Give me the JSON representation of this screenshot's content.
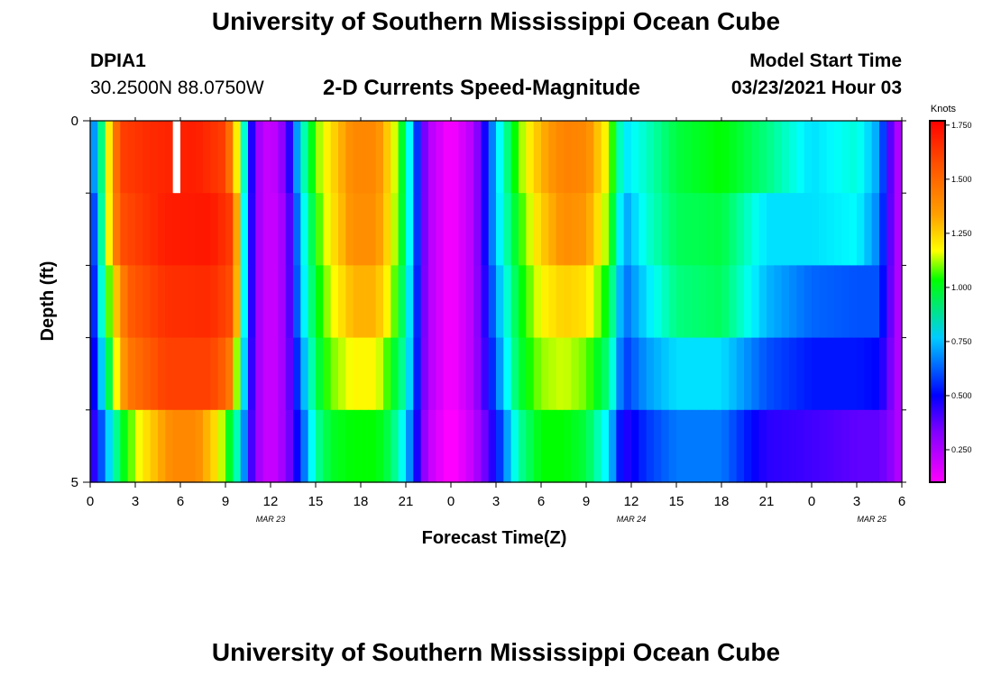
{
  "header": {
    "title": "University of Southern Mississippi Ocean Cube",
    "station_id": "DPIA1",
    "station_coords": "30.2500N 88.0750W",
    "product_title": "2-D Currents Speed-Magnitude",
    "model_start_label": "Model Start Time",
    "model_start_value": "03/23/2021 Hour 03"
  },
  "footer": {
    "title": "University of Southern Mississippi Ocean Cube"
  },
  "chart_data": {
    "type": "heatmap",
    "title": "2-D Currents Speed-Magnitude",
    "xlabel": "Forecast Time(Z)",
    "ylabel": "Depth (ft)",
    "ylim": [
      0,
      5
    ],
    "y_tick_labels": [
      "0",
      "5"
    ],
    "x_hours": [
      0,
      54
    ],
    "x_tick_labels": [
      "0",
      "3",
      "6",
      "9",
      "12",
      "15",
      "18",
      "21",
      "0",
      "3",
      "6",
      "9",
      "12",
      "15",
      "18",
      "21",
      "0",
      "3",
      "6"
    ],
    "date_labels": [
      {
        "label": "MAR 23",
        "hour": 12
      },
      {
        "label": "MAR 24",
        "hour": 36
      },
      {
        "label": "MAR 25",
        "hour": 52
      }
    ],
    "colorbar": {
      "unit": "Knots",
      "range": [
        0.1,
        1.77
      ],
      "ticks": [
        "0.250",
        "0.500",
        "0.750",
        "1.000",
        "1.250",
        "1.500",
        "1.750"
      ],
      "tick_values": [
        0.25,
        0.5,
        0.75,
        1.0,
        1.25,
        1.5,
        1.75
      ],
      "colors": [
        "#ff00ff",
        "#8000ff",
        "#0000ff",
        "#00ffff",
        "#00ff00",
        "#ffff00",
        "#ff8000",
        "#ff0000"
      ]
    },
    "depth_layers": 5,
    "time_step_hours": 0.5,
    "speed_profiles_by_layer": [
      [
        [
          0,
          0.55
        ],
        [
          1,
          0.95
        ],
        [
          2,
          1.55
        ],
        [
          4,
          1.62
        ],
        [
          7,
          1.66
        ],
        [
          9,
          1.55
        ],
        [
          10,
          0.95
        ],
        [
          11,
          0.3
        ],
        [
          12,
          0.18
        ],
        [
          13,
          0.35
        ],
        [
          14,
          0.75
        ],
        [
          15,
          1.0
        ],
        [
          16,
          1.12
        ],
        [
          17.5,
          1.3
        ],
        [
          19,
          1.3
        ],
        [
          20,
          1.12
        ],
        [
          21,
          0.85
        ],
        [
          22.5,
          0.25
        ],
        [
          24,
          0.1
        ],
        [
          25.5,
          0.25
        ],
        [
          27,
          0.7
        ],
        [
          28.5,
          1.0
        ],
        [
          30,
          1.2
        ],
        [
          31.5,
          1.32
        ],
        [
          33,
          1.3
        ],
        [
          34.5,
          1.05
        ],
        [
          35.5,
          0.72
        ],
        [
          37.5,
          0.82
        ],
        [
          39,
          0.9
        ],
        [
          42,
          0.95
        ],
        [
          45,
          0.85
        ],
        [
          48,
          0.72
        ],
        [
          51,
          0.78
        ],
        [
          52.5,
          0.65
        ],
        [
          53.5,
          0.3
        ],
        [
          54,
          0.2
        ]
      ],
      [
        [
          0,
          0.45
        ],
        [
          1,
          0.95
        ],
        [
          2,
          1.5
        ],
        [
          5,
          1.66
        ],
        [
          8,
          1.68
        ],
        [
          9.5,
          1.55
        ],
        [
          10,
          0.9
        ],
        [
          11,
          0.3
        ],
        [
          12,
          0.18
        ],
        [
          13,
          0.3
        ],
        [
          14,
          0.7
        ],
        [
          15,
          0.95
        ],
        [
          16,
          1.1
        ],
        [
          17.5,
          1.28
        ],
        [
          19,
          1.28
        ],
        [
          20,
          1.1
        ],
        [
          21,
          0.85
        ],
        [
          22.5,
          0.25
        ],
        [
          24,
          0.1
        ],
        [
          25.5,
          0.25
        ],
        [
          27,
          0.7
        ],
        [
          28.5,
          0.95
        ],
        [
          30,
          1.15
        ],
        [
          31.5,
          1.28
        ],
        [
          33,
          1.25
        ],
        [
          34.5,
          1.0
        ],
        [
          35.5,
          0.65
        ],
        [
          37,
          0.78
        ],
        [
          39,
          0.88
        ],
        [
          42,
          0.9
        ],
        [
          45,
          0.72
        ],
        [
          48,
          0.72
        ],
        [
          51,
          0.75
        ],
        [
          52.5,
          0.62
        ],
        [
          53.5,
          0.3
        ],
        [
          54,
          0.2
        ]
      ],
      [
        [
          0,
          0.42
        ],
        [
          1,
          0.9
        ],
        [
          2.5,
          1.45
        ],
        [
          5,
          1.6
        ],
        [
          8,
          1.62
        ],
        [
          9.5,
          1.5
        ],
        [
          10,
          0.9
        ],
        [
          11,
          0.3
        ],
        [
          12,
          0.18
        ],
        [
          13,
          0.3
        ],
        [
          14,
          0.68
        ],
        [
          15,
          0.92
        ],
        [
          16,
          1.05
        ],
        [
          17.5,
          1.2
        ],
        [
          19,
          1.2
        ],
        [
          20,
          1.05
        ],
        [
          21,
          0.82
        ],
        [
          22.5,
          0.25
        ],
        [
          24,
          0.1
        ],
        [
          25.5,
          0.25
        ],
        [
          27,
          0.65
        ],
        [
          28.5,
          0.92
        ],
        [
          30,
          1.08
        ],
        [
          31.5,
          1.15
        ],
        [
          33,
          1.12
        ],
        [
          34.5,
          0.92
        ],
        [
          35.5,
          0.6
        ],
        [
          37,
          0.72
        ],
        [
          39,
          0.85
        ],
        [
          42,
          0.88
        ],
        [
          45,
          0.68
        ],
        [
          48,
          0.6
        ],
        [
          51,
          0.58
        ],
        [
          52.5,
          0.58
        ],
        [
          53.5,
          0.3
        ],
        [
          54,
          0.2
        ]
      ],
      [
        [
          0,
          0.4
        ],
        [
          1,
          0.8
        ],
        [
          2.5,
          1.35
        ],
        [
          5,
          1.55
        ],
        [
          8,
          1.55
        ],
        [
          9.2,
          1.4
        ],
        [
          10,
          0.85
        ],
        [
          11,
          0.3
        ],
        [
          12,
          0.18
        ],
        [
          13,
          0.3
        ],
        [
          14,
          0.62
        ],
        [
          15,
          0.88
        ],
        [
          16,
          1.0
        ],
        [
          17.5,
          1.08
        ],
        [
          19,
          1.08
        ],
        [
          20,
          0.95
        ],
        [
          21,
          0.8
        ],
        [
          22.5,
          0.25
        ],
        [
          24,
          0.1
        ],
        [
          25.5,
          0.25
        ],
        [
          27,
          0.6
        ],
        [
          28.5,
          0.9
        ],
        [
          30,
          1.02
        ],
        [
          31.5,
          1.05
        ],
        [
          33,
          1.0
        ],
        [
          34.5,
          0.85
        ],
        [
          35.5,
          0.55
        ],
        [
          37,
          0.65
        ],
        [
          39,
          0.72
        ],
        [
          42,
          0.72
        ],
        [
          45,
          0.58
        ],
        [
          48,
          0.52
        ],
        [
          51,
          0.52
        ],
        [
          52.5,
          0.5
        ],
        [
          53.5,
          0.3
        ],
        [
          54,
          0.2
        ]
      ],
      [
        [
          0,
          0.38
        ],
        [
          1,
          0.65
        ],
        [
          2,
          0.9
        ],
        [
          3.5,
          1.1
        ],
        [
          5.5,
          1.3
        ],
        [
          7,
          1.3
        ],
        [
          8.5,
          1.1
        ],
        [
          10,
          0.75
        ],
        [
          11,
          0.3
        ],
        [
          12,
          0.18
        ],
        [
          13,
          0.3
        ],
        [
          14,
          0.55
        ],
        [
          15,
          0.82
        ],
        [
          16,
          0.92
        ],
        [
          17.5,
          0.95
        ],
        [
          19,
          0.95
        ],
        [
          20,
          0.88
        ],
        [
          21,
          0.72
        ],
        [
          22.5,
          0.22
        ],
        [
          24,
          0.08
        ],
        [
          25.5,
          0.22
        ],
        [
          27,
          0.5
        ],
        [
          28.5,
          0.82
        ],
        [
          30,
          0.95
        ],
        [
          31.5,
          0.95
        ],
        [
          33,
          0.9
        ],
        [
          34.5,
          0.72
        ],
        [
          35.5,
          0.45
        ],
        [
          37,
          0.55
        ],
        [
          39,
          0.62
        ],
        [
          42,
          0.62
        ],
        [
          45,
          0.45
        ],
        [
          48,
          0.42
        ],
        [
          51,
          0.38
        ],
        [
          52.5,
          0.38
        ],
        [
          53.5,
          0.3
        ],
        [
          54,
          0.2
        ]
      ]
    ],
    "missing_cells": [
      {
        "hour": 5.5,
        "layer": 0
      }
    ]
  }
}
